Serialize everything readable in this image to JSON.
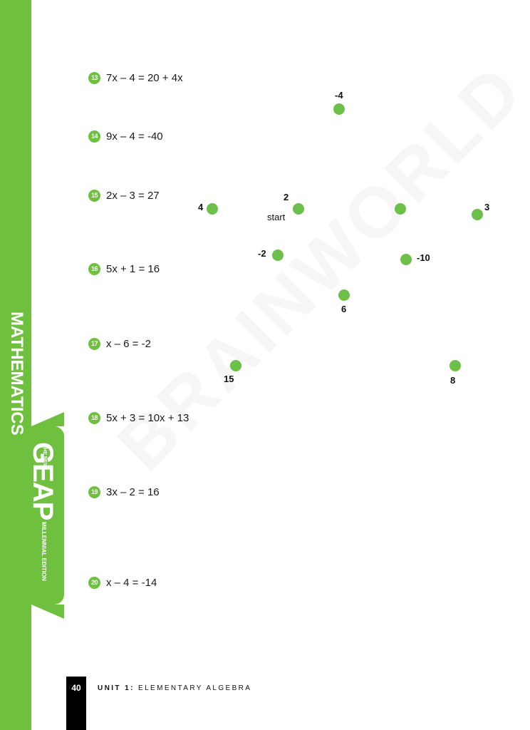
{
  "sidebar": {
    "subject": "MATHEMATICS",
    "brand": {
      "pre": "THE NEW",
      "name": "GEAP",
      "edition": "MILLENNIAL EDITION"
    }
  },
  "problems": [
    {
      "number": "13",
      "equation": "7x – 4 = 20 + 4x"
    },
    {
      "number": "14",
      "equation": "9x – 4 = -40"
    },
    {
      "number": "15",
      "equation": "2x – 3 = 27"
    },
    {
      "number": "16",
      "equation": "5x + 1 = 16"
    },
    {
      "number": "17",
      "equation": "x – 6 = -2"
    },
    {
      "number": "18",
      "equation": "5x + 3 = 10x + 13"
    },
    {
      "number": "19",
      "equation": "3x – 2 = 16"
    },
    {
      "number": "20",
      "equation": "x – 4 = -14"
    }
  ],
  "dots": [
    {
      "label": "-4"
    },
    {
      "label": "4"
    },
    {
      "label": "2",
      "note": "start"
    },
    {
      "label": ""
    },
    {
      "label": "3"
    },
    {
      "label": "-2"
    },
    {
      "label": "-10"
    },
    {
      "label": "6"
    },
    {
      "label": "15"
    },
    {
      "label": "8"
    }
  ],
  "watermark": "BRAINWORLD",
  "footer": {
    "page": "40",
    "unit_prefix": "UNIT 1:",
    "unit_title": "ELEMENTARY ALGEBRA"
  },
  "colors": {
    "accent": "#6fc03f",
    "dot": "#6cc04a"
  }
}
